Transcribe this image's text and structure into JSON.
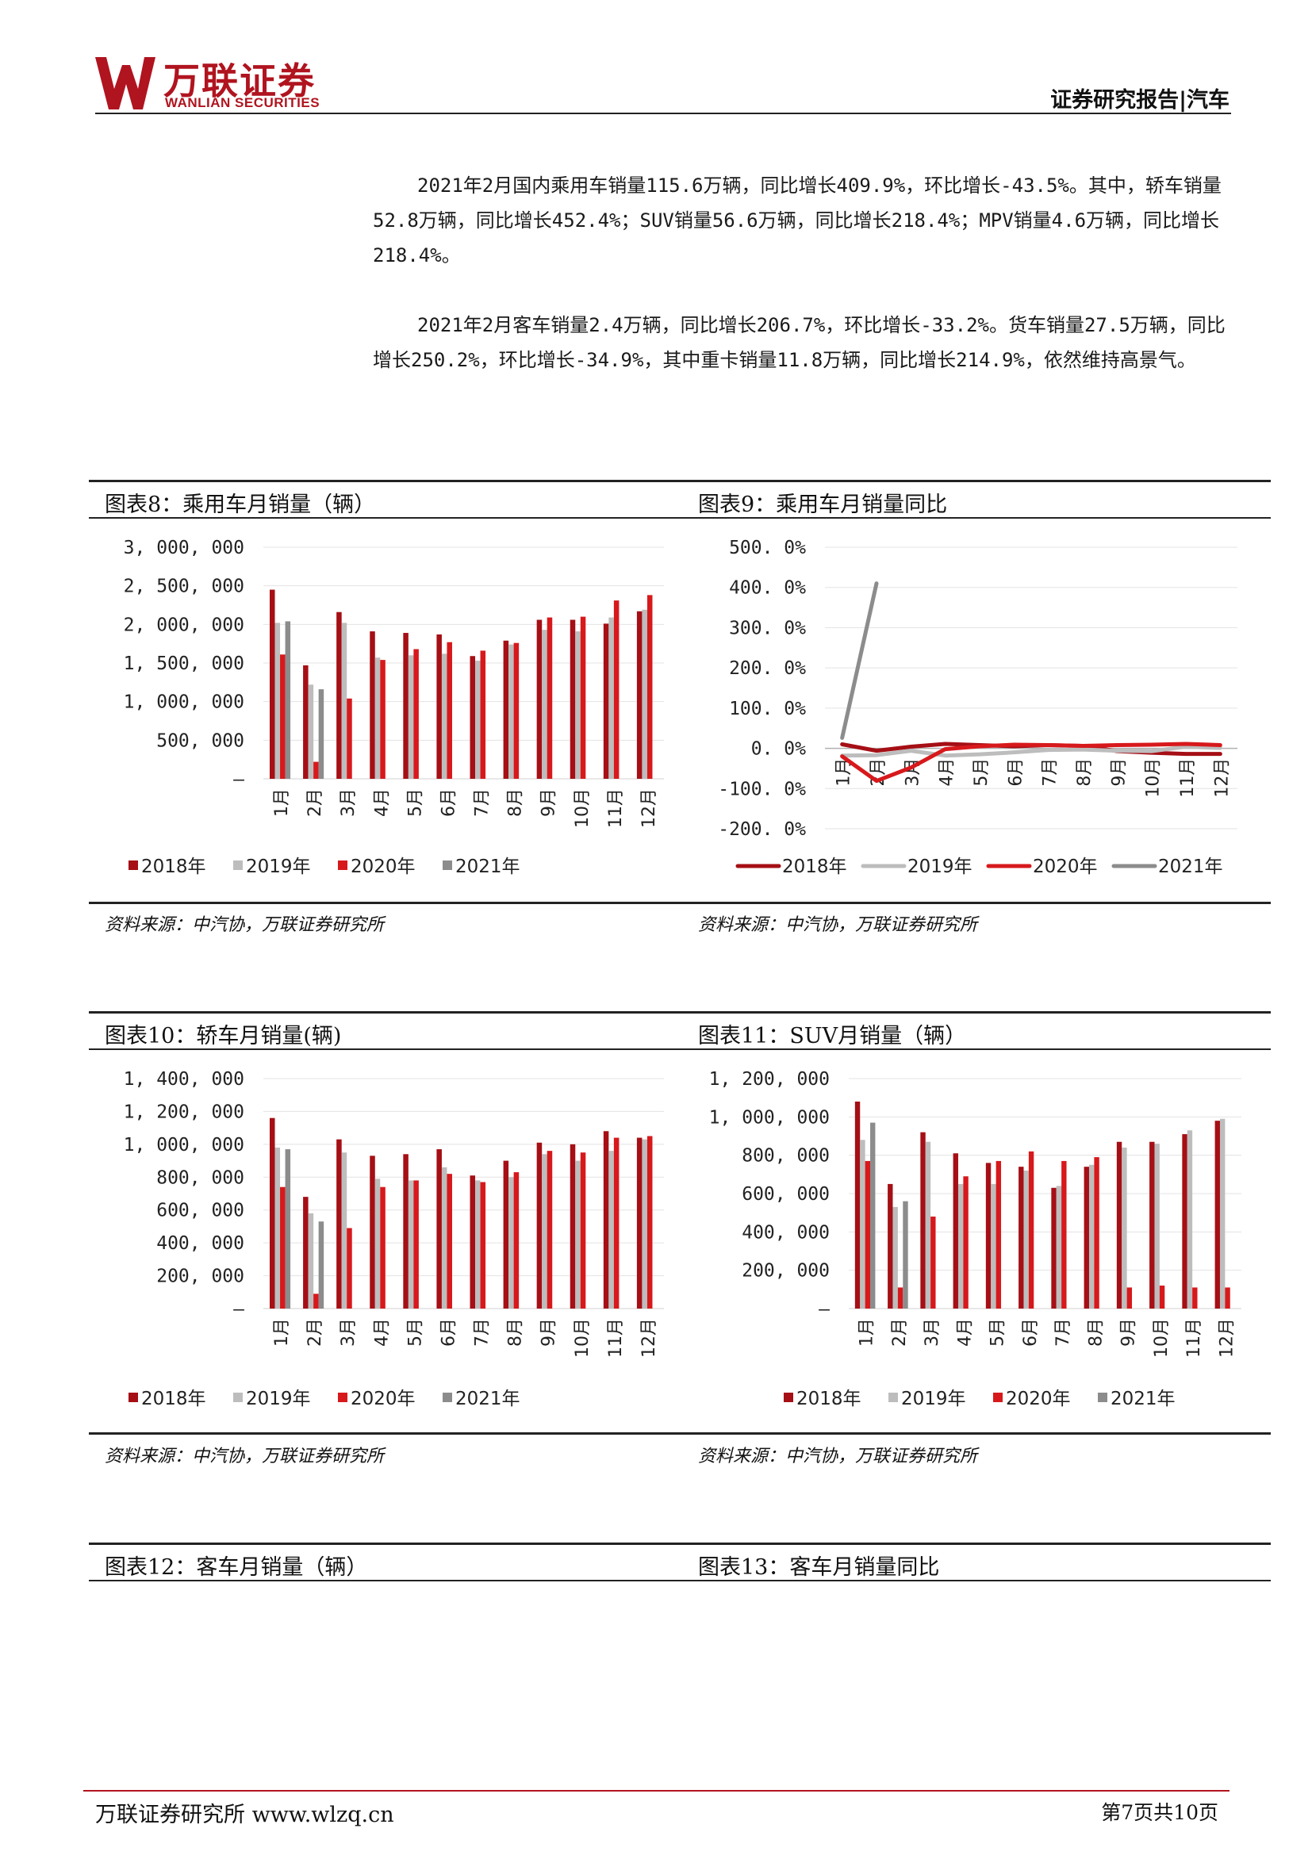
{
  "header": {
    "brand_cn": "万联证券",
    "brand_en": "WANLIAN SECURITIES",
    "report_type": "证券研究报告|汽车"
  },
  "paragraphs": [
    "2021年2月国内乘用车销量115.6万辆，同比增长409.9%，环比增长-43.5%。其中，轿车销量52.8万辆，同比增长452.4%；SUV销量56.6万辆，同比增长218.4%；MPV销量4.6万辆，同比增长218.4%。",
    "2021年2月客车销量2.4万辆，同比增长206.7%，环比增长-33.2%。货车销量27.5万辆，同比增长250.2%，环比增长-34.9%，其中重卡销量11.8万辆，同比增长214.9%，依然维持高景气。"
  ],
  "figures": {
    "fig8": {
      "title": "图表8：乘用车月销量（辆）",
      "source": "资料来源：中汽协，万联证券研究所"
    },
    "fig9": {
      "title": "图表9：乘用车月销量同比",
      "source": "资料来源：中汽协，万联证券研究所"
    },
    "fig10": {
      "title": "图表10：轿车月销量(辆)",
      "source": "资料来源：中汽协，万联证券研究所"
    },
    "fig11": {
      "title": "图表11：SUV月销量（辆）",
      "source": "资料来源：中汽协，万联证券研究所"
    },
    "fig12": {
      "title": "图表12：客车月销量（辆）"
    },
    "fig13": {
      "title": "图表13：客车月销量同比"
    }
  },
  "colors": {
    "y2018": "#a50f15",
    "y2019": "#bdbdbd",
    "y2020": "#d7191c",
    "y2021": "#8c8c8c",
    "brand": "#b0141f"
  },
  "chart_data": [
    {
      "id": "fig8",
      "type": "bar",
      "categories": [
        "1月",
        "2月",
        "3月",
        "4月",
        "5月",
        "6月",
        "7月",
        "8月",
        "9月",
        "10月",
        "11月",
        "12月"
      ],
      "ylim": [
        0,
        3000000
      ],
      "yticks": [
        "–",
        "500, 000",
        "1, 000, 000",
        "1, 500, 000",
        "2, 000, 000",
        "2, 500, 000",
        "3, 000, 000"
      ],
      "legend_position": "bottom",
      "series": [
        {
          "name": "2018年",
          "color": "#a50f15",
          "values": [
            2450000,
            1470000,
            2160000,
            1910000,
            1890000,
            1870000,
            1590000,
            1790000,
            2060000,
            2060000,
            2010000,
            2170000
          ]
        },
        {
          "name": "2019年",
          "color": "#bdbdbd",
          "values": [
            2020000,
            1220000,
            2020000,
            1570000,
            1600000,
            1620000,
            1530000,
            1740000,
            1930000,
            1910000,
            2090000,
            2190000
          ]
        },
        {
          "name": "2020年",
          "color": "#d7191c",
          "values": [
            1610000,
            220000,
            1040000,
            1540000,
            1680000,
            1770000,
            1660000,
            1760000,
            2090000,
            2100000,
            2310000,
            2380000
          ]
        },
        {
          "name": "2021年",
          "color": "#8c8c8c",
          "values": [
            2040000,
            1160000,
            null,
            null,
            null,
            null,
            null,
            null,
            null,
            null,
            null,
            null
          ]
        }
      ]
    },
    {
      "id": "fig9",
      "type": "line",
      "categories": [
        "1月",
        "2月",
        "3月",
        "4月",
        "5月",
        "6月",
        "7月",
        "8月",
        "9月",
        "10月",
        "11月",
        "12月"
      ],
      "ylim": [
        -200,
        500
      ],
      "yticks": [
        "-200. 0%",
        "-100. 0%",
        "0. 0%",
        "100. 0%",
        "200. 0%",
        "300. 0%",
        "400. 0%",
        "500. 0%"
      ],
      "legend_position": "bottom",
      "series": [
        {
          "name": "2018年",
          "color": "#a50f15",
          "values": [
            10,
            -6,
            4,
            11,
            8,
            5,
            8,
            6,
            -7,
            -11,
            -14,
            -14
          ]
        },
        {
          "name": "2019年",
          "color": "#bdbdbd",
          "values": [
            -18,
            -17,
            -6,
            -18,
            -15,
            -10,
            -4,
            -3,
            -6,
            -7,
            4,
            1
          ]
        },
        {
          "name": "2020年",
          "color": "#d7191c",
          "values": [
            -20,
            -81,
            -48,
            -2,
            5,
            9,
            8,
            6,
            8,
            9,
            11,
            8
          ]
        },
        {
          "name": "2021年",
          "color": "#8c8c8c",
          "values": [
            26,
            410,
            null,
            null,
            null,
            null,
            null,
            null,
            null,
            null,
            null,
            null
          ]
        }
      ]
    },
    {
      "id": "fig10",
      "type": "bar",
      "categories": [
        "1月",
        "2月",
        "3月",
        "4月",
        "5月",
        "6月",
        "7月",
        "8月",
        "9月",
        "10月",
        "11月",
        "12月"
      ],
      "ylim": [
        0,
        1400000
      ],
      "yticks": [
        "–",
        "200, 000",
        "400, 000",
        "600, 000",
        "800, 000",
        "1, 000, 000",
        "1, 200, 000",
        "1, 400, 000"
      ],
      "legend_position": "bottom",
      "series": [
        {
          "name": "2018年",
          "color": "#a50f15",
          "values": [
            1160000,
            680000,
            1030000,
            930000,
            940000,
            970000,
            810000,
            900000,
            1010000,
            1000000,
            1080000,
            1040000
          ]
        },
        {
          "name": "2019年",
          "color": "#bdbdbd",
          "values": [
            980000,
            580000,
            950000,
            790000,
            780000,
            860000,
            780000,
            800000,
            940000,
            900000,
            960000,
            1030000
          ]
        },
        {
          "name": "2020年",
          "color": "#d7191c",
          "values": [
            740000,
            90000,
            490000,
            740000,
            780000,
            820000,
            770000,
            830000,
            960000,
            950000,
            1040000,
            1050000
          ]
        },
        {
          "name": "2021年",
          "color": "#8c8c8c",
          "values": [
            970000,
            530000,
            null,
            null,
            null,
            null,
            null,
            null,
            null,
            null,
            null,
            null
          ]
        }
      ]
    },
    {
      "id": "fig11",
      "type": "bar",
      "categories": [
        "1月",
        "2月",
        "3月",
        "4月",
        "5月",
        "6月",
        "7月",
        "8月",
        "9月",
        "10月",
        "11月",
        "12月"
      ],
      "ylim": [
        0,
        1200000
      ],
      "yticks": [
        "–",
        "200, 000",
        "400, 000",
        "600, 000",
        "800, 000",
        "1, 000, 000",
        "1, 200, 000"
      ],
      "legend_position": "bottom",
      "series": [
        {
          "name": "2018年",
          "color": "#a50f15",
          "values": [
            1080000,
            650000,
            920000,
            810000,
            760000,
            740000,
            630000,
            740000,
            870000,
            870000,
            910000,
            980000
          ]
        },
        {
          "name": "2019年",
          "color": "#bdbdbd",
          "values": [
            880000,
            530000,
            870000,
            650000,
            650000,
            720000,
            640000,
            750000,
            840000,
            860000,
            930000,
            990000
          ]
        },
        {
          "name": "2020年",
          "color": "#d7191c",
          "values": [
            770000,
            110000,
            480000,
            690000,
            770000,
            820000,
            770000,
            790000,
            110000,
            120000,
            110000,
            110000
          ]
        },
        {
          "name": "2021年",
          "color": "#8c8c8c",
          "values": [
            970000,
            560000,
            null,
            null,
            null,
            null,
            null,
            null,
            null,
            null,
            null,
            null
          ]
        }
      ]
    }
  ],
  "footer": {
    "left": "万联证券研究所 www.wlzq.cn",
    "right": "第7页共10页"
  }
}
